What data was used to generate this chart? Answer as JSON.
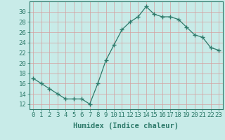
{
  "x": [
    0,
    1,
    2,
    3,
    4,
    5,
    6,
    7,
    8,
    9,
    10,
    11,
    12,
    13,
    14,
    15,
    16,
    17,
    18,
    19,
    20,
    21,
    22,
    23
  ],
  "y": [
    17,
    16,
    15,
    14,
    13,
    13,
    13,
    12,
    16,
    20.5,
    23.5,
    26.5,
    28,
    29,
    31,
    29.5,
    29,
    29,
    28.5,
    27,
    25.5,
    25,
    23,
    22.5
  ],
  "line_color": "#2d7a6a",
  "marker": "+",
  "marker_size": 4,
  "bg_color": "#c8ebe8",
  "grid_color": "#d4a0a0",
  "xlabel": "Humidex (Indice chaleur)",
  "ylim": [
    11,
    32
  ],
  "xlim": [
    -0.5,
    23.5
  ],
  "yticks": [
    12,
    14,
    16,
    18,
    20,
    22,
    24,
    26,
    28,
    30
  ],
  "xticks": [
    0,
    1,
    2,
    3,
    4,
    5,
    6,
    7,
    8,
    9,
    10,
    11,
    12,
    13,
    14,
    15,
    16,
    17,
    18,
    19,
    20,
    21,
    22,
    23
  ],
  "tick_fontsize": 6.5,
  "label_fontsize": 7.5
}
